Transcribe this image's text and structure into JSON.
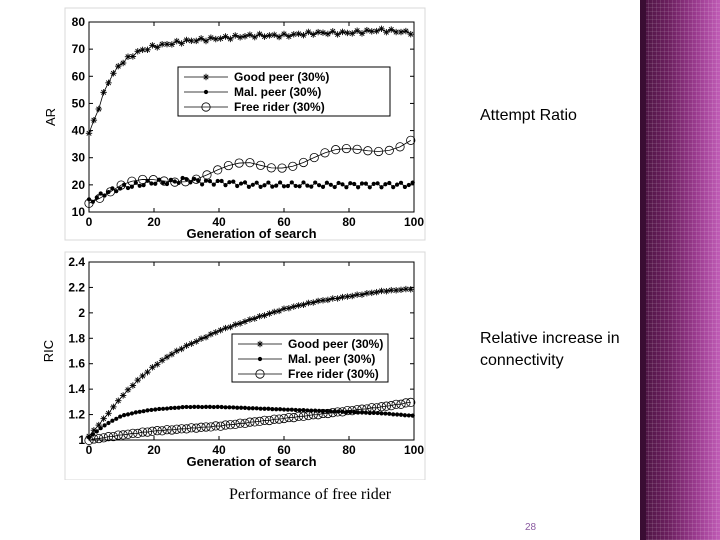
{
  "slide": {
    "caption_ar": "Attempt Ratio",
    "caption_ric": "Relative increase in connectivity",
    "figure_caption": "Performance of free rider",
    "page_number": "28"
  },
  "chart_data": [
    {
      "type": "line",
      "ylabel": "AR",
      "xlabel": "Generation of search",
      "xlim": [
        0,
        100
      ],
      "ylim": [
        10,
        80
      ],
      "xticks": [
        0,
        20,
        40,
        60,
        80,
        100
      ],
      "yticks": [
        10,
        20,
        30,
        40,
        50,
        60,
        70,
        80
      ],
      "legend_position": "center",
      "series": [
        {
          "name": "Good peer (30%)",
          "marker": "star",
          "x": [
            0,
            2,
            4,
            6,
            8,
            10,
            15,
            20,
            25,
            30,
            40,
            50,
            60,
            70,
            80,
            90,
            100
          ],
          "y": [
            39,
            45,
            52,
            58,
            62,
            65,
            69,
            71,
            72,
            73,
            74,
            75,
            75,
            76,
            76,
            77,
            76
          ]
        },
        {
          "name": "Mal. peer (30%)",
          "marker": "dot",
          "x": [
            0,
            2,
            5,
            10,
            15,
            20,
            25,
            30,
            35,
            40,
            50,
            60,
            70,
            80,
            90,
            100
          ],
          "y": [
            14,
            15,
            17,
            19,
            20,
            21,
            21,
            22,
            21,
            21,
            20,
            20,
            20,
            20,
            20,
            20
          ]
        },
        {
          "name": "Free rider (30%)",
          "marker": "circle",
          "x": [
            0,
            5,
            10,
            15,
            20,
            25,
            30,
            35,
            40,
            45,
            50,
            55,
            60,
            65,
            70,
            75,
            80,
            85,
            90,
            95,
            100
          ],
          "y": [
            15,
            17,
            19,
            20,
            21,
            22,
            23,
            24,
            25,
            26,
            27,
            27,
            28,
            29,
            30,
            31,
            32,
            33,
            34,
            35,
            37
          ]
        }
      ]
    },
    {
      "type": "line",
      "ylabel": "RIC",
      "xlabel": "Generation of search",
      "xlim": [
        0,
        100
      ],
      "ylim": [
        1,
        2.4
      ],
      "xticks": [
        0,
        20,
        40,
        60,
        80,
        100
      ],
      "yticks": [
        1,
        1.2,
        1.4,
        1.6,
        1.8,
        2,
        2.2,
        2.4
      ],
      "legend_position": "center-right",
      "series": [
        {
          "name": "Good peer (30%)",
          "marker": "star",
          "x": [
            0,
            5,
            10,
            15,
            20,
            25,
            30,
            40,
            50,
            60,
            70,
            80,
            90,
            100
          ],
          "y": [
            1.03,
            1.18,
            1.34,
            1.47,
            1.58,
            1.67,
            1.74,
            1.86,
            1.95,
            2.03,
            2.09,
            2.13,
            2.17,
            2.19
          ]
        },
        {
          "name": "Mal. peer (30%)",
          "marker": "dot",
          "x": [
            0,
            5,
            10,
            15,
            20,
            25,
            30,
            40,
            50,
            60,
            70,
            80,
            90,
            100
          ],
          "y": [
            1.02,
            1.12,
            1.19,
            1.22,
            1.24,
            1.25,
            1.26,
            1.26,
            1.25,
            1.24,
            1.23,
            1.22,
            1.21,
            1.19
          ]
        },
        {
          "name": "Free rider (30%)",
          "marker": "circle",
          "x": [
            0,
            10,
            20,
            30,
            40,
            50,
            60,
            70,
            80,
            90,
            100
          ],
          "y": [
            1.0,
            1.04,
            1.07,
            1.09,
            1.11,
            1.14,
            1.17,
            1.2,
            1.23,
            1.26,
            1.3
          ]
        }
      ]
    }
  ]
}
